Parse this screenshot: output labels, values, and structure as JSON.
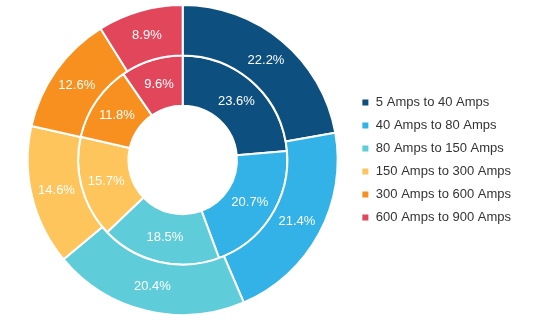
{
  "chart_data": {
    "type": "doughnut",
    "categories": [
      "5 Amps to 40 Amps",
      "40 Amps to 80 Amps",
      "80 Amps to 150 Amps",
      "150 Amps to 300 Amps",
      "300 Amps to 600 Amps",
      "600 Amps to 900 Amps"
    ],
    "colors": [
      "#0d4f7e",
      "#33b2e8",
      "#5ecdd9",
      "#fdc55c",
      "#f7901f",
      "#e2465b"
    ],
    "series": [
      {
        "values": [
          22.2,
          21.4,
          20.4,
          14.6,
          12.6,
          8.9
        ],
        "value_labels": [
          "22.2%",
          "21.4%",
          "20.4%",
          "14.6%",
          "12.6%",
          "8.9%"
        ]
      },
      {
        "values": [
          23.6,
          20.7,
          18.5,
          15.7,
          11.8,
          9.6
        ],
        "value_labels": [
          "23.6%",
          "20.7%",
          "18.5%",
          "15.7%",
          "11.8%",
          "9.6%"
        ]
      }
    ],
    "legend": "right",
    "data_labels": true
  }
}
